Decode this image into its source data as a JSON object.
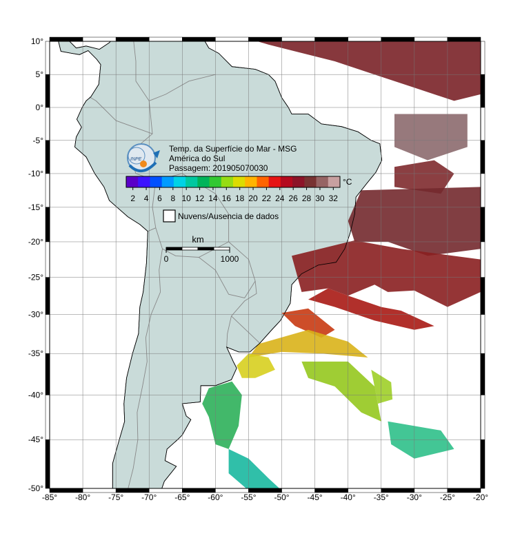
{
  "map": {
    "title": "Temp. da Superfície do Mar - MSG",
    "region": "América do Sul",
    "pass": "Passagem: 201905070030",
    "colorbar": {
      "unit": "°C",
      "range": [
        1,
        33
      ],
      "ticks": [
        2,
        4,
        6,
        8,
        10,
        12,
        14,
        16,
        18,
        20,
        22,
        24,
        26,
        28,
        30,
        32
      ]
    },
    "legend": "Nuvens/Ausencia de dados",
    "scalebar": {
      "unit": "km",
      "ticks": [
        0,
        1000
      ]
    },
    "xlim": [
      -85,
      -20
    ],
    "ylim": [
      -50,
      10
    ],
    "xticks": [
      {
        "value": -85,
        "label": "-85°"
      },
      {
        "value": -80,
        "label": "-80°"
      },
      {
        "value": -75,
        "label": "-75°"
      },
      {
        "value": -70,
        "label": "-70°"
      },
      {
        "value": -65,
        "label": "-65°"
      },
      {
        "value": -60,
        "label": "-60°"
      },
      {
        "value": -55,
        "label": "-55°"
      },
      {
        "value": -50,
        "label": "-50°"
      },
      {
        "value": -45,
        "label": "-45°"
      },
      {
        "value": -40,
        "label": "-40°"
      },
      {
        "value": -35,
        "label": "-35°"
      },
      {
        "value": -30,
        "label": "-30°"
      },
      {
        "value": -25,
        "label": "-25°"
      },
      {
        "value": -20,
        "label": "-20°"
      }
    ],
    "yticks": [
      {
        "value": 10,
        "label": "10°"
      },
      {
        "value": 5,
        "label": "5°"
      },
      {
        "value": 0,
        "label": "0°"
      },
      {
        "value": -5,
        "label": "-5°"
      },
      {
        "value": -10,
        "label": "-10°"
      },
      {
        "value": -15,
        "label": "-15°"
      },
      {
        "value": -20,
        "label": "-20°"
      },
      {
        "value": -25,
        "label": "-25°"
      },
      {
        "value": -30,
        "label": "-30°"
      },
      {
        "value": -35,
        "label": "-35°"
      },
      {
        "value": -40,
        "label": "-40°"
      },
      {
        "value": -45,
        "label": "-45°"
      },
      {
        "value": -50,
        "label": "-50°"
      }
    ]
  }
}
